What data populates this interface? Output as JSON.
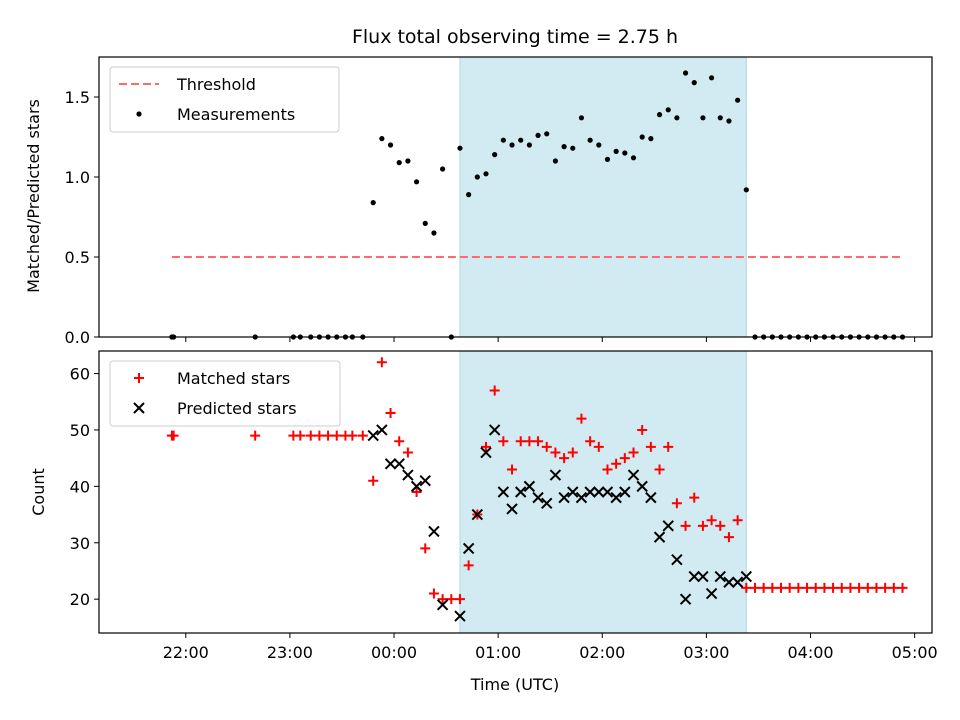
{
  "chart_data": {
    "type": "scatter",
    "title": "Flux total observing time = 2.75 h",
    "xlabel": "Time (UTC)",
    "x_unit": "minutes relative to 00:00 UTC",
    "xlim": [
      -170,
      310
    ],
    "x_ticks": [
      {
        "value": -120,
        "label": "22:00"
      },
      {
        "value": -60,
        "label": "23:00"
      },
      {
        "value": 0,
        "label": "00:00"
      },
      {
        "value": 60,
        "label": "01:00"
      },
      {
        "value": 120,
        "label": "02:00"
      },
      {
        "value": 180,
        "label": "03:00"
      },
      {
        "value": 240,
        "label": "04:00"
      },
      {
        "value": 300,
        "label": "05:00"
      }
    ],
    "observing_window": {
      "start": 38,
      "end": 203,
      "color": "#add8e6"
    },
    "panels": [
      {
        "name": "ratio",
        "ylabel": "Matched/Predicted stars",
        "ylim": [
          0,
          1.75
        ],
        "y_ticks": [
          "0.0",
          "0.5",
          "1.0",
          "1.5"
        ],
        "y_tick_values": [
          0,
          0.5,
          1.0,
          1.5
        ],
        "legend": [
          "Threshold",
          "Measurements"
        ],
        "threshold": {
          "name": "Threshold",
          "value": 0.5,
          "x_range": [
            -128,
            293
          ],
          "color": "#ff6b6b"
        },
        "series": [
          {
            "name": "Measurements",
            "marker": "dot",
            "color": "#000000",
            "points": [
              [
                -128,
                0
              ],
              [
                -127,
                0
              ],
              [
                -80,
                0
              ],
              [
                -58,
                0
              ],
              [
                -54,
                0
              ],
              [
                -48,
                0
              ],
              [
                -43,
                0
              ],
              [
                -38,
                0
              ],
              [
                -33,
                0
              ],
              [
                -28,
                0
              ],
              [
                -24,
                0
              ],
              [
                -18,
                0
              ],
              [
                -12,
                0.84
              ],
              [
                -7,
                1.24
              ],
              [
                -2,
                1.2
              ],
              [
                3,
                1.09
              ],
              [
                8,
                1.1
              ],
              [
                13,
                0.97
              ],
              [
                18,
                0.71
              ],
              [
                23,
                0.65
              ],
              [
                28,
                1.05
              ],
              [
                33,
                0.0
              ],
              [
                38,
                1.18
              ],
              [
                43,
                0.89
              ],
              [
                48,
                1.0
              ],
              [
                53,
                1.02
              ],
              [
                58,
                1.14
              ],
              [
                63,
                1.23
              ],
              [
                68,
                1.2
              ],
              [
                73,
                1.23
              ],
              [
                78,
                1.2
              ],
              [
                83,
                1.26
              ],
              [
                88,
                1.27
              ],
              [
                93,
                1.1
              ],
              [
                98,
                1.19
              ],
              [
                103,
                1.18
              ],
              [
                108,
                1.37
              ],
              [
                113,
                1.23
              ],
              [
                118,
                1.2
              ],
              [
                123,
                1.11
              ],
              [
                128,
                1.16
              ],
              [
                133,
                1.15
              ],
              [
                138,
                1.12
              ],
              [
                143,
                1.25
              ],
              [
                148,
                1.24
              ],
              [
                153,
                1.39
              ],
              [
                158,
                1.42
              ],
              [
                163,
                1.37
              ],
              [
                168,
                1.65
              ],
              [
                173,
                1.59
              ],
              [
                178,
                1.37
              ],
              [
                183,
                1.62
              ],
              [
                188,
                1.37
              ],
              [
                193,
                1.35
              ],
              [
                198,
                1.48
              ],
              [
                203,
                0.92
              ],
              [
                208,
                0
              ],
              [
                213,
                0
              ],
              [
                218,
                0
              ],
              [
                223,
                0
              ],
              [
                228,
                0
              ],
              [
                233,
                0
              ],
              [
                238,
                0
              ],
              [
                243,
                0
              ],
              [
                248,
                0
              ],
              [
                253,
                0
              ],
              [
                258,
                0
              ],
              [
                263,
                0
              ],
              [
                268,
                0
              ],
              [
                273,
                0
              ],
              [
                278,
                0
              ],
              [
                283,
                0
              ],
              [
                288,
                0
              ],
              [
                293,
                0
              ]
            ]
          }
        ]
      },
      {
        "name": "count",
        "ylabel": "Count",
        "ylim": [
          14,
          64
        ],
        "y_ticks": [
          "20",
          "30",
          "40",
          "50",
          "60"
        ],
        "y_tick_values": [
          20,
          30,
          40,
          50,
          60
        ],
        "legend": [
          "Matched stars",
          "Predicted stars"
        ],
        "series": [
          {
            "name": "Matched stars",
            "marker": "plus",
            "color": "#ff0000",
            "points": [
              [
                -128,
                49
              ],
              [
                -127,
                49
              ],
              [
                -80,
                49
              ],
              [
                -58,
                49
              ],
              [
                -54,
                49
              ],
              [
                -48,
                49
              ],
              [
                -43,
                49
              ],
              [
                -38,
                49
              ],
              [
                -33,
                49
              ],
              [
                -28,
                49
              ],
              [
                -24,
                49
              ],
              [
                -18,
                49
              ],
              [
                -12,
                41
              ],
              [
                -7,
                62
              ],
              [
                -2,
                53
              ],
              [
                3,
                48
              ],
              [
                8,
                46
              ],
              [
                13,
                39
              ],
              [
                18,
                29
              ],
              [
                23,
                21
              ],
              [
                28,
                20
              ],
              [
                33,
                20
              ],
              [
                38,
                20
              ],
              [
                43,
                26
              ],
              [
                48,
                35
              ],
              [
                53,
                47
              ],
              [
                58,
                57
              ],
              [
                63,
                48
              ],
              [
                68,
                43
              ],
              [
                73,
                48
              ],
              [
                78,
                48
              ],
              [
                83,
                48
              ],
              [
                88,
                47
              ],
              [
                93,
                46
              ],
              [
                98,
                45
              ],
              [
                103,
                46
              ],
              [
                108,
                52
              ],
              [
                113,
                48
              ],
              [
                118,
                47
              ],
              [
                123,
                43
              ],
              [
                128,
                44
              ],
              [
                133,
                45
              ],
              [
                138,
                46
              ],
              [
                143,
                50
              ],
              [
                148,
                47
              ],
              [
                153,
                43
              ],
              [
                158,
                47
              ],
              [
                163,
                37
              ],
              [
                168,
                33
              ],
              [
                173,
                38
              ],
              [
                178,
                33
              ],
              [
                183,
                34
              ],
              [
                188,
                33
              ],
              [
                193,
                31
              ],
              [
                198,
                34
              ],
              [
                203,
                22
              ],
              [
                208,
                22
              ],
              [
                213,
                22
              ],
              [
                218,
                22
              ],
              [
                223,
                22
              ],
              [
                228,
                22
              ],
              [
                233,
                22
              ],
              [
                238,
                22
              ],
              [
                243,
                22
              ],
              [
                248,
                22
              ],
              [
                253,
                22
              ],
              [
                258,
                22
              ],
              [
                263,
                22
              ],
              [
                268,
                22
              ],
              [
                273,
                22
              ],
              [
                278,
                22
              ],
              [
                283,
                22
              ],
              [
                288,
                22
              ],
              [
                293,
                22
              ]
            ]
          },
          {
            "name": "Predicted stars",
            "marker": "x",
            "color": "#000000",
            "points": [
              [
                -12,
                49
              ],
              [
                -7,
                50
              ],
              [
                -2,
                44
              ],
              [
                3,
                44
              ],
              [
                8,
                42
              ],
              [
                13,
                40
              ],
              [
                18,
                41
              ],
              [
                23,
                32
              ],
              [
                28,
                19
              ],
              [
                38,
                17
              ],
              [
                43,
                29
              ],
              [
                48,
                35
              ],
              [
                53,
                46
              ],
              [
                58,
                50
              ],
              [
                63,
                39
              ],
              [
                68,
                36
              ],
              [
                73,
                39
              ],
              [
                78,
                40
              ],
              [
                83,
                38
              ],
              [
                88,
                37
              ],
              [
                93,
                42
              ],
              [
                98,
                38
              ],
              [
                103,
                39
              ],
              [
                108,
                38
              ],
              [
                113,
                39
              ],
              [
                118,
                39
              ],
              [
                123,
                39
              ],
              [
                128,
                38
              ],
              [
                133,
                39
              ],
              [
                138,
                42
              ],
              [
                143,
                40
              ],
              [
                148,
                38
              ],
              [
                153,
                31
              ],
              [
                158,
                33
              ],
              [
                163,
                27
              ],
              [
                168,
                20
              ],
              [
                173,
                24
              ],
              [
                178,
                24
              ],
              [
                183,
                21
              ],
              [
                188,
                24
              ],
              [
                193,
                23
              ],
              [
                198,
                23
              ],
              [
                203,
                24
              ]
            ]
          }
        ]
      }
    ]
  }
}
